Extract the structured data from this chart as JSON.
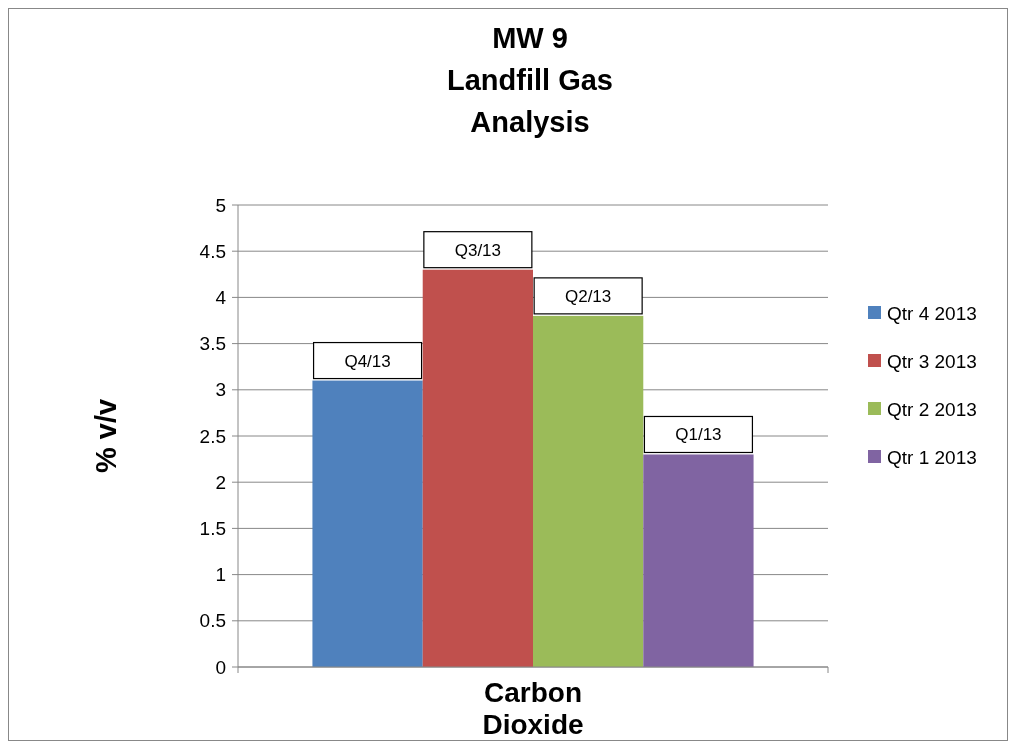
{
  "chart_data": {
    "type": "bar",
    "title": "MW 9\nLandfill Gas\nAnalysis",
    "ylabel": "% v/v",
    "categories": [
      "Carbon\nDioxide"
    ],
    "series": [
      {
        "name": "Qtr 4 2013",
        "color": "#4f81bd",
        "values": [
          3.1
        ],
        "value_labels": [
          "Q4/13"
        ]
      },
      {
        "name": "Qtr 3 2013",
        "color": "#c0504d",
        "values": [
          4.3
        ],
        "value_labels": [
          "Q3/13"
        ]
      },
      {
        "name": "Qtr 2 2013",
        "color": "#9bbb59",
        "values": [
          3.8
        ],
        "value_labels": [
          "Q2/13"
        ]
      },
      {
        "name": "Qtr 1 2013",
        "color": "#8064a2",
        "values": [
          2.3
        ],
        "value_labels": [
          "Q1/13"
        ]
      }
    ],
    "ylim": [
      0,
      5
    ],
    "yticks": [
      0,
      0.5,
      1,
      1.5,
      2,
      2.5,
      3,
      3.5,
      4,
      4.5,
      5
    ],
    "grid": "y",
    "legend": "right"
  }
}
